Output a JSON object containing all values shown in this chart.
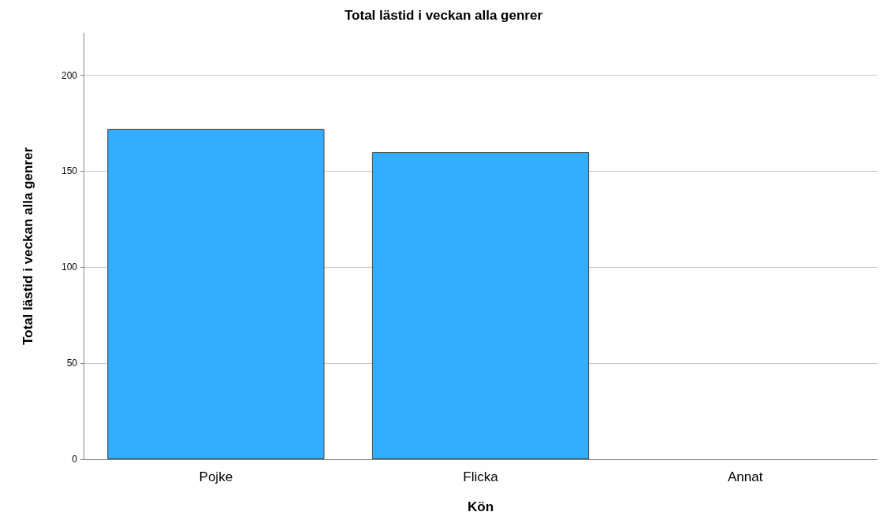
{
  "chart_data": {
    "type": "bar",
    "title": "Total lästid i veckan alla genrer",
    "xlabel": "Kön",
    "ylabel": "Total lästid i veckan alla genrer",
    "categories": [
      "Pojke",
      "Flicka",
      "Annat"
    ],
    "values": [
      172,
      160,
      null
    ],
    "color": "#33adff",
    "ylim": [
      0,
      222
    ],
    "yticks": [
      0,
      50,
      100,
      150,
      200
    ],
    "grid": "y"
  }
}
